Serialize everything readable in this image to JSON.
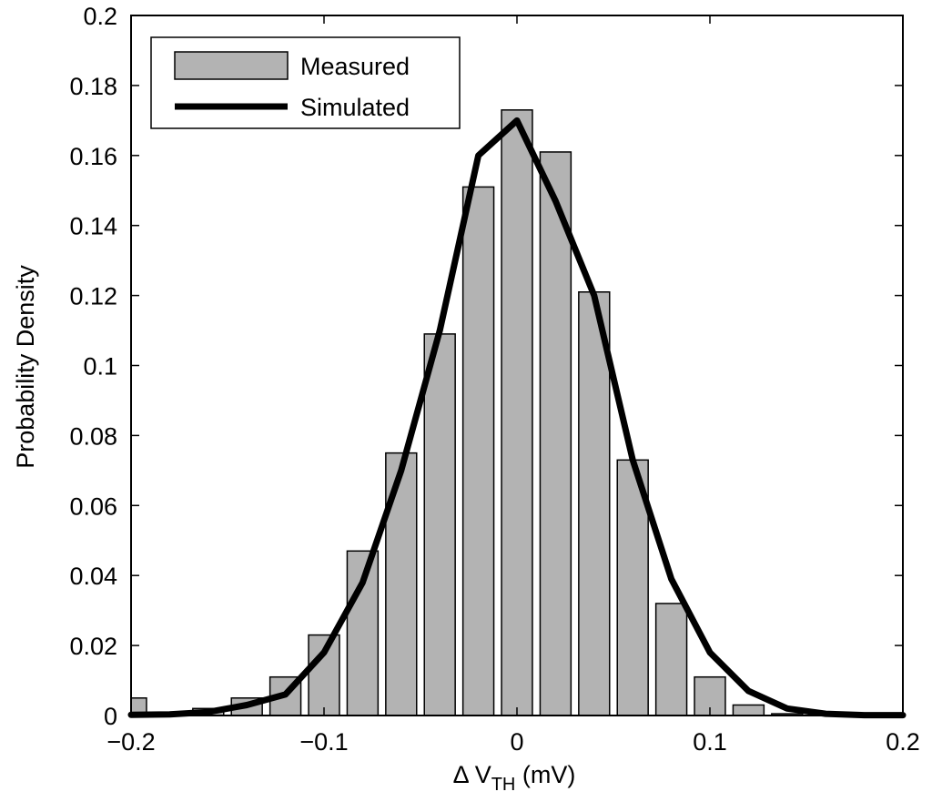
{
  "chart_data": {
    "type": "bar",
    "title": "",
    "xlabel": {
      "prefix": "Δ V",
      "subscript": "TH",
      "suffix": " (mV)"
    },
    "ylabel": "Probability Density",
    "xlim": [
      -0.2,
      0.2
    ],
    "ylim": [
      0,
      0.2
    ],
    "xticks": [
      -0.2,
      -0.1,
      0,
      0.1,
      0.2
    ],
    "xtick_labels": [
      "−0.2",
      "−0.1",
      "0",
      "0.1",
      "0.2"
    ],
    "yticks": [
      0,
      0.02,
      0.04,
      0.06,
      0.08,
      0.1,
      0.12,
      0.14,
      0.16,
      0.18,
      0.2
    ],
    "ytick_labels": [
      "0",
      "0.02",
      "0.04",
      "0.06",
      "0.08",
      "0.1",
      "0.12",
      "0.14",
      "0.16",
      "0.18",
      "0.2"
    ],
    "legend": {
      "position": "top-left",
      "entries": [
        "Measured",
        "Simulated"
      ]
    },
    "series": [
      {
        "name": "Measured",
        "kind": "bar",
        "color": "#b3b3b3",
        "bin_width": 0.02,
        "x": [
          -0.2,
          -0.18,
          -0.16,
          -0.14,
          -0.12,
          -0.1,
          -0.08,
          -0.06,
          -0.04,
          -0.02,
          0,
          0.02,
          0.04,
          0.06,
          0.08,
          0.1,
          0.12,
          0.14
        ],
        "values": [
          0.005,
          0.0,
          0.002,
          0.005,
          0.011,
          0.023,
          0.047,
          0.075,
          0.109,
          0.151,
          0.173,
          0.161,
          0.121,
          0.073,
          0.032,
          0.011,
          0.003,
          0.0005
        ]
      },
      {
        "name": "Simulated",
        "kind": "line",
        "color": "#000000",
        "x": [
          -0.2,
          -0.18,
          -0.16,
          -0.14,
          -0.12,
          -0.1,
          -0.08,
          -0.06,
          -0.04,
          -0.02,
          0,
          0.02,
          0.04,
          0.06,
          0.08,
          0.1,
          0.12,
          0.14,
          0.16,
          0.18,
          0.2
        ],
        "values": [
          0.0002,
          0.0003,
          0.001,
          0.003,
          0.006,
          0.018,
          0.038,
          0.07,
          0.11,
          0.16,
          0.17,
          0.147,
          0.12,
          0.073,
          0.039,
          0.018,
          0.007,
          0.002,
          0.0005,
          0.0001,
          0.0001
        ]
      }
    ]
  }
}
